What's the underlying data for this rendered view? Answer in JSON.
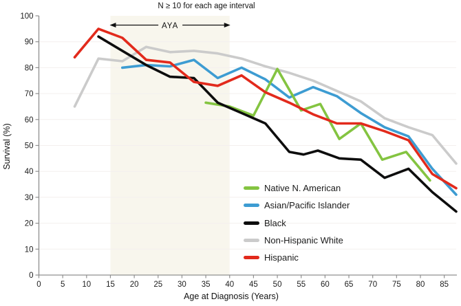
{
  "chart_data": {
    "type": "line",
    "title": "N ≥ 10 for each age interval",
    "xlabel": "Age at Diagnosis (Years)",
    "ylabel": "Survival (%)",
    "xlim": [
      0,
      87.5
    ],
    "ylim": [
      0,
      100
    ],
    "xticks": [
      0,
      5,
      10,
      15,
      20,
      25,
      30,
      35,
      40,
      45,
      50,
      55,
      60,
      65,
      70,
      75,
      80,
      85
    ],
    "yticks": [
      0,
      10,
      20,
      30,
      40,
      50,
      60,
      70,
      80,
      90,
      100
    ],
    "grid": "horizontal-light",
    "legend_position": "inside-bottom-center",
    "annotation_band": {
      "label": "AYA",
      "age_start": 15,
      "age_end": 40,
      "fill": "#f8f6ed"
    },
    "axis_color": "#8f8f8f",
    "grid_color": "#f3efee",
    "series": [
      {
        "name": "Native N. American",
        "color": "#84c441",
        "points": [
          [
            35,
            66.5
          ],
          [
            40,
            65
          ],
          [
            45,
            61.5
          ],
          [
            50,
            79.5
          ],
          [
            55,
            63.5
          ],
          [
            59,
            66
          ],
          [
            63,
            52.5
          ],
          [
            67.5,
            58.5
          ],
          [
            72,
            44.5
          ],
          [
            77,
            47.5
          ],
          [
            82,
            36.5
          ]
        ]
      },
      {
        "name": "Asian/Pacific Islander",
        "color": "#3d9cd2",
        "points": [
          [
            17.5,
            80
          ],
          [
            22.5,
            81
          ],
          [
            27.5,
            80.5
          ],
          [
            32.5,
            83
          ],
          [
            37.5,
            76
          ],
          [
            42.5,
            80
          ],
          [
            47.5,
            75.5
          ],
          [
            52.5,
            68.5
          ],
          [
            57.5,
            72.5
          ],
          [
            62.5,
            69
          ],
          [
            67.5,
            62.5
          ],
          [
            72.5,
            57
          ],
          [
            77.5,
            53.5
          ],
          [
            82.5,
            41
          ],
          [
            87.5,
            31
          ]
        ]
      },
      {
        "name": "Black",
        "color": "#0d0d0d",
        "points": [
          [
            12.5,
            92
          ],
          [
            17.5,
            86.5
          ],
          [
            22.5,
            81
          ],
          [
            27.5,
            76.5
          ],
          [
            32.5,
            76
          ],
          [
            37.5,
            66.5
          ],
          [
            42.5,
            62.5
          ],
          [
            47.5,
            58.5
          ],
          [
            52.5,
            47.5
          ],
          [
            55.5,
            46.5
          ],
          [
            58.5,
            48
          ],
          [
            63,
            45
          ],
          [
            67.5,
            44.5
          ],
          [
            72.5,
            37.5
          ],
          [
            77.5,
            41
          ],
          [
            82.5,
            32
          ],
          [
            87.5,
            24.5
          ]
        ]
      },
      {
        "name": "Non-Hispanic White",
        "color": "#cbcbcb",
        "points": [
          [
            7.5,
            65
          ],
          [
            12.5,
            83.5
          ],
          [
            17.5,
            82.5
          ],
          [
            22.5,
            88
          ],
          [
            27.5,
            86
          ],
          [
            32.5,
            86.5
          ],
          [
            37.5,
            85.5
          ],
          [
            42.5,
            83.5
          ],
          [
            47.5,
            80.5
          ],
          [
            52.5,
            78
          ],
          [
            57.5,
            75
          ],
          [
            62.5,
            71
          ],
          [
            67.5,
            67
          ],
          [
            72.5,
            60.5
          ],
          [
            77.5,
            57
          ],
          [
            82.5,
            54
          ],
          [
            87.5,
            43
          ]
        ]
      },
      {
        "name": "Hispanic",
        "color": "#e22a1c",
        "points": [
          [
            7.5,
            84
          ],
          [
            12.5,
            95
          ],
          [
            17.5,
            91.5
          ],
          [
            22.5,
            83
          ],
          [
            27.5,
            82
          ],
          [
            32.5,
            74.5
          ],
          [
            37.5,
            73
          ],
          [
            42.5,
            77
          ],
          [
            47.5,
            70.5
          ],
          [
            52.5,
            66.5
          ],
          [
            57.5,
            62
          ],
          [
            62.5,
            58.5
          ],
          [
            67.5,
            58.5
          ],
          [
            72.5,
            55.5
          ],
          [
            77.5,
            52
          ],
          [
            82.5,
            39
          ],
          [
            87.5,
            33.5
          ]
        ]
      }
    ],
    "draw_order": [
      "Non-Hispanic White",
      "Asian/Pacific Islander",
      "Native N. American",
      "Black",
      "Hispanic"
    ]
  }
}
